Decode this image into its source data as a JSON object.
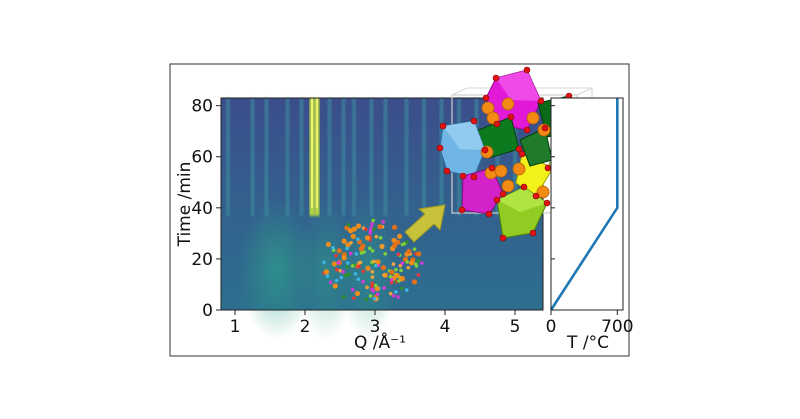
{
  "chart_data": [
    {
      "type": "heatmap",
      "xlabel": "Q /Å⁻¹",
      "ylabel": "Time /min",
      "xlim": [
        0.8,
        5.4
      ],
      "ylim": [
        0,
        83
      ],
      "xticks": [
        1,
        2,
        3,
        4,
        5
      ],
      "yticks": [
        0,
        20,
        40,
        60,
        80
      ],
      "colormap": "viridis",
      "amorphous_phase": {
        "time_range": [
          0,
          40
        ],
        "broad_peaks_q": [
          1.6,
          2.3,
          2.9
        ]
      },
      "crystalline_phase": {
        "onset_time": 40,
        "peak_q": [
          0.9,
          1.25,
          1.45,
          1.75,
          1.95,
          2.1,
          2.17,
          2.35,
          2.55,
          2.7,
          2.95,
          3.15,
          3.45,
          3.7,
          3.95,
          4.2,
          4.45,
          4.75,
          5.0
        ],
        "strong_peak_q": [
          2.1,
          2.17
        ]
      }
    },
    {
      "type": "line",
      "xlabel": "T /°C",
      "ylabel": "",
      "xlim": [
        0,
        760
      ],
      "ylim": [
        0,
        83
      ],
      "xticks": [
        0,
        700
      ],
      "x": [
        0,
        700,
        700
      ],
      "y": [
        0,
        40,
        83
      ],
      "color": "#1f77b4"
    }
  ]
}
